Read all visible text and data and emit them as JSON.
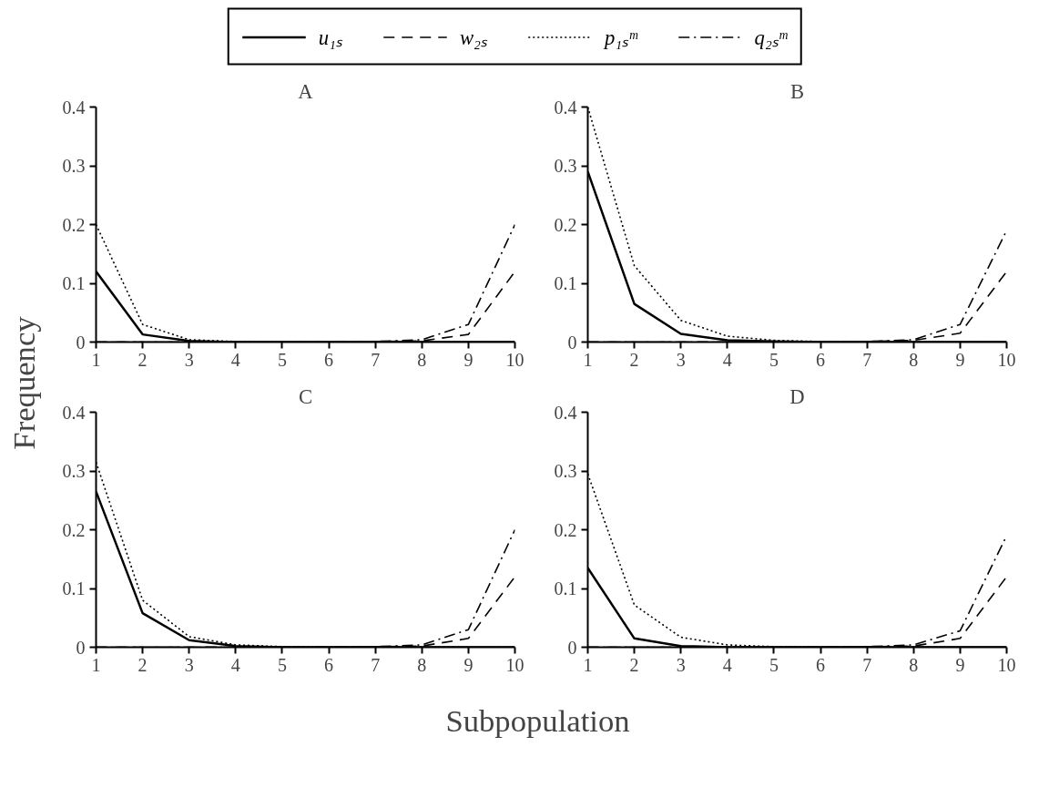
{
  "chart_data": [
    {
      "type": "line",
      "title": "A",
      "xlabel": "Subpopulation",
      "ylabel": "Frequency",
      "legend": "top",
      "x": [
        1,
        2,
        3,
        4,
        5,
        6,
        7,
        8,
        9,
        10
      ],
      "xlim": [
        1,
        10
      ],
      "ylim": [
        0,
        0.4
      ],
      "xticks": [
        1,
        2,
        3,
        4,
        5,
        6,
        7,
        8,
        9,
        10
      ],
      "yticks": [
        0,
        0.1,
        0.2,
        0.3,
        0.4
      ],
      "series": [
        {
          "name": "u₁ₛ",
          "color": "#000000",
          "line_style": "solid",
          "values": [
            0.12,
            0.013,
            0.002,
            0,
            0,
            0,
            0,
            0,
            0,
            0
          ]
        },
        {
          "name": "w₂ₛ",
          "color": "#000000",
          "line_style": "dashed",
          "values": [
            0,
            0,
            0,
            0,
            0,
            0,
            0.001,
            0.002,
            0.013,
            0.12
          ]
        },
        {
          "name": "p₁ₛᵐ",
          "color": "#000000",
          "line_style": "dotted",
          "values": [
            0.2,
            0.03,
            0.004,
            0.001,
            0,
            0,
            0,
            0,
            0,
            0
          ]
        },
        {
          "name": "q₂ₛᵐ",
          "color": "#000000",
          "line_style": "dashdot",
          "values": [
            0,
            0,
            0,
            0,
            0,
            0,
            0.001,
            0.004,
            0.03,
            0.2
          ]
        }
      ]
    },
    {
      "type": "line",
      "title": "B",
      "legend": "top",
      "x": [
        1,
        2,
        3,
        4,
        5,
        6,
        7,
        8,
        9,
        10
      ],
      "xlim": [
        1,
        10
      ],
      "ylim": [
        0,
        0.4
      ],
      "xticks": [
        1,
        2,
        3,
        4,
        5,
        6,
        7,
        8,
        9,
        10
      ],
      "yticks": [
        0,
        0.1,
        0.2,
        0.3,
        0.4
      ],
      "series": [
        {
          "name": "u₁ₛ",
          "color": "#000000",
          "line_style": "solid",
          "values": [
            0.29,
            0.065,
            0.014,
            0.003,
            0.001,
            0,
            0,
            0,
            0,
            0
          ]
        },
        {
          "name": "w₂ₛ",
          "color": "#000000",
          "line_style": "dashed",
          "values": [
            0,
            0,
            0,
            0,
            0,
            0,
            0.001,
            0.003,
            0.015,
            0.12
          ]
        },
        {
          "name": "p₁ₛᵐ",
          "color": "#000000",
          "line_style": "dotted",
          "values": [
            0.4,
            0.13,
            0.037,
            0.01,
            0.003,
            0.001,
            0,
            0,
            0,
            0
          ]
        },
        {
          "name": "q₂ₛᵐ",
          "color": "#000000",
          "line_style": "dashdot",
          "values": [
            0,
            0,
            0,
            0,
            0,
            0,
            0.001,
            0.004,
            0.03,
            0.19
          ]
        }
      ]
    },
    {
      "type": "line",
      "title": "C",
      "legend": "top",
      "x": [
        1,
        2,
        3,
        4,
        5,
        6,
        7,
        8,
        9,
        10
      ],
      "xlim": [
        1,
        10
      ],
      "ylim": [
        0,
        0.4
      ],
      "xticks": [
        1,
        2,
        3,
        4,
        5,
        6,
        7,
        8,
        9,
        10
      ],
      "yticks": [
        0,
        0.1,
        0.2,
        0.3,
        0.4
      ],
      "series": [
        {
          "name": "u₁ₛ",
          "color": "#000000",
          "line_style": "solid",
          "values": [
            0.265,
            0.058,
            0.012,
            0.002,
            0,
            0,
            0,
            0,
            0,
            0
          ]
        },
        {
          "name": "w₂ₛ",
          "color": "#000000",
          "line_style": "dashed",
          "values": [
            0,
            0,
            0,
            0,
            0,
            0,
            0.001,
            0.002,
            0.015,
            0.12
          ]
        },
        {
          "name": "p₁ₛᵐ",
          "color": "#000000",
          "line_style": "dotted",
          "values": [
            0.315,
            0.08,
            0.018,
            0.004,
            0.001,
            0,
            0,
            0,
            0,
            0
          ]
        },
        {
          "name": "q₂ₛᵐ",
          "color": "#000000",
          "line_style": "dashdot",
          "values": [
            0,
            0,
            0,
            0,
            0,
            0,
            0.001,
            0.004,
            0.03,
            0.2
          ]
        }
      ]
    },
    {
      "type": "line",
      "title": "D",
      "legend": "top",
      "x": [
        1,
        2,
        3,
        4,
        5,
        6,
        7,
        8,
        9,
        10
      ],
      "xlim": [
        1,
        10
      ],
      "ylim": [
        0,
        0.4
      ],
      "xticks": [
        1,
        2,
        3,
        4,
        5,
        6,
        7,
        8,
        9,
        10
      ],
      "yticks": [
        0,
        0.1,
        0.2,
        0.3,
        0.4
      ],
      "series": [
        {
          "name": "u₁ₛ",
          "color": "#000000",
          "line_style": "solid",
          "values": [
            0.135,
            0.015,
            0.002,
            0,
            0,
            0,
            0,
            0,
            0,
            0
          ]
        },
        {
          "name": "w₂ₛ",
          "color": "#000000",
          "line_style": "dashed",
          "values": [
            0,
            0,
            0,
            0,
            0,
            0,
            0.001,
            0.002,
            0.015,
            0.12
          ]
        },
        {
          "name": "p₁ₛᵐ",
          "color": "#000000",
          "line_style": "dotted",
          "values": [
            0.295,
            0.072,
            0.017,
            0.004,
            0.001,
            0,
            0,
            0,
            0,
            0
          ]
        },
        {
          "name": "q₂ₛᵐ",
          "color": "#000000",
          "line_style": "dashdot",
          "values": [
            0,
            0,
            0,
            0,
            0,
            0,
            0.001,
            0.004,
            0.028,
            0.19
          ]
        }
      ]
    }
  ]
}
